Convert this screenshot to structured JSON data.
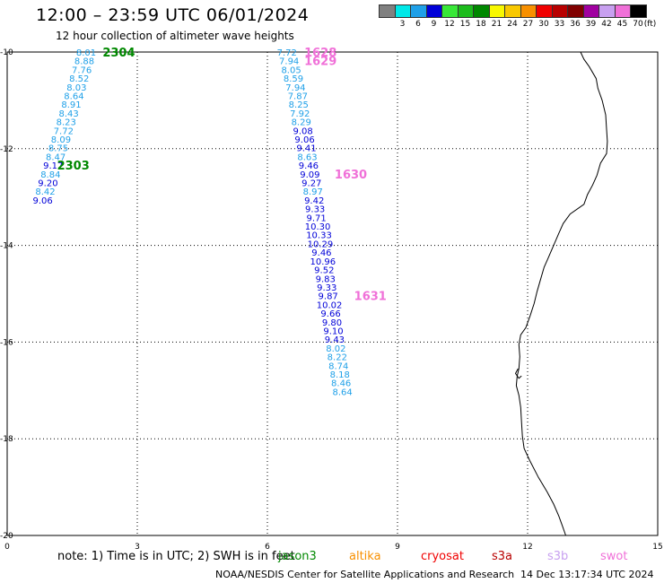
{
  "header": {
    "title": "12:00 – 23:59 UTC 06/01/2024",
    "subtitle": "12 hour collection of altimeter wave heights"
  },
  "legend": {
    "unit": "(ft)",
    "bins": [
      {
        "label": "3",
        "color": "#808080"
      },
      {
        "label": "6",
        "color": "#00e8e8"
      },
      {
        "label": "9",
        "color": "#1fa0e8"
      },
      {
        "label": "12",
        "color": "#0000d8"
      },
      {
        "label": "15",
        "color": "#38e838"
      },
      {
        "label": "18",
        "color": "#1cbc1c"
      },
      {
        "label": "21",
        "color": "#008800"
      },
      {
        "label": "24",
        "color": "#f8f800"
      },
      {
        "label": "27",
        "color": "#f8c800"
      },
      {
        "label": "30",
        "color": "#f89000"
      },
      {
        "label": "33",
        "color": "#f00000"
      },
      {
        "label": "36",
        "color": "#b80000"
      },
      {
        "label": "39",
        "color": "#800000"
      },
      {
        "label": "42",
        "color": "#a000a0"
      },
      {
        "label": "45",
        "color": "#c8a0f0"
      },
      {
        "label": "70",
        "color": "#f070d8"
      },
      {
        "label": "",
        "color": "#000000"
      }
    ]
  },
  "map": {
    "lon_range": [
      0,
      15
    ],
    "lat_range": [
      -20,
      -10
    ],
    "x_ticks": [
      {
        "lon": 0,
        "label": "0"
      },
      {
        "lon": 3,
        "label": "3"
      },
      {
        "lon": 6,
        "label": "6"
      },
      {
        "lon": 9,
        "label": "9"
      },
      {
        "lon": 12,
        "label": "12"
      },
      {
        "lon": 15,
        "label": "15"
      }
    ],
    "y_ticks": [
      {
        "lat": -10,
        "label": "-10"
      },
      {
        "lat": -12,
        "label": "-12"
      },
      {
        "lat": -14,
        "label": "-14"
      },
      {
        "lat": -16,
        "label": "-16"
      },
      {
        "lat": -18,
        "label": "-18"
      },
      {
        "lat": -20,
        "label": "-20"
      }
    ],
    "grid": "dotted",
    "coastline": [
      [
        13.22,
        -10.0
      ],
      [
        13.3,
        -10.15
      ],
      [
        13.42,
        -10.3
      ],
      [
        13.58,
        -10.55
      ],
      [
        13.62,
        -10.75
      ],
      [
        13.72,
        -11.0
      ],
      [
        13.8,
        -11.3
      ],
      [
        13.82,
        -11.6
      ],
      [
        13.84,
        -11.85
      ],
      [
        13.82,
        -12.1
      ],
      [
        13.68,
        -12.3
      ],
      [
        13.6,
        -12.55
      ],
      [
        13.5,
        -12.75
      ],
      [
        13.38,
        -12.95
      ],
      [
        13.3,
        -13.15
      ],
      [
        12.98,
        -13.35
      ],
      [
        12.82,
        -13.55
      ],
      [
        12.72,
        -13.75
      ],
      [
        12.6,
        -14.0
      ],
      [
        12.48,
        -14.25
      ],
      [
        12.38,
        -14.45
      ],
      [
        12.3,
        -14.7
      ],
      [
        12.22,
        -14.95
      ],
      [
        12.15,
        -15.2
      ],
      [
        12.06,
        -15.45
      ],
      [
        11.96,
        -15.7
      ],
      [
        11.84,
        -15.85
      ],
      [
        11.8,
        -16.05
      ],
      [
        11.82,
        -16.3
      ],
      [
        11.8,
        -16.55
      ],
      [
        11.76,
        -16.7
      ],
      [
        11.74,
        -16.9
      ],
      [
        11.8,
        -17.1
      ],
      [
        11.84,
        -17.35
      ],
      [
        11.86,
        -17.65
      ],
      [
        11.88,
        -17.95
      ],
      [
        11.92,
        -18.2
      ],
      [
        12.05,
        -18.45
      ],
      [
        12.25,
        -18.8
      ],
      [
        12.45,
        -19.1
      ],
      [
        12.6,
        -19.35
      ],
      [
        12.72,
        -19.6
      ],
      [
        12.8,
        -19.8
      ],
      [
        12.88,
        -20.0
      ]
    ],
    "coast_inlet": [
      [
        11.78,
        -16.55
      ],
      [
        11.72,
        -16.65
      ],
      [
        11.8,
        -16.75
      ],
      [
        11.86,
        -16.7
      ]
    ]
  },
  "tracks": [
    {
      "pass_label": "2304",
      "pass_color": "#008800",
      "pass_label_pos": {
        "lon": 2.2,
        "lat": -10.0
      },
      "label_align": "end",
      "points": [
        {
          "value": "8.01",
          "lon": 1.82,
          "lat": -10.0,
          "color": "#1fa0e8"
        },
        {
          "value": "8.88",
          "lon": 1.78,
          "lat": -10.18,
          "color": "#1fa0e8"
        },
        {
          "value": "7.76",
          "lon": 1.72,
          "lat": -10.36,
          "color": "#1fa0e8"
        },
        {
          "value": "8.52",
          "lon": 1.66,
          "lat": -10.54,
          "color": "#1fa0e8"
        },
        {
          "value": "8.03",
          "lon": 1.6,
          "lat": -10.72,
          "color": "#1fa0e8"
        },
        {
          "value": "8.64",
          "lon": 1.54,
          "lat": -10.9,
          "color": "#1fa0e8"
        },
        {
          "value": "8.91",
          "lon": 1.48,
          "lat": -11.08,
          "color": "#1fa0e8"
        },
        {
          "value": "8.43",
          "lon": 1.42,
          "lat": -11.26,
          "color": "#1fa0e8"
        },
        {
          "value": "8.23",
          "lon": 1.36,
          "lat": -11.44,
          "color": "#1fa0e8"
        },
        {
          "value": "7.72",
          "lon": 1.3,
          "lat": -11.62,
          "color": "#1fa0e8"
        },
        {
          "value": "8.09",
          "lon": 1.24,
          "lat": -11.8,
          "color": "#1fa0e8"
        },
        {
          "value": "8.75",
          "lon": 1.18,
          "lat": -11.98,
          "color": "#1fa0e8"
        },
        {
          "value": "8.47",
          "lon": 1.12,
          "lat": -12.16,
          "color": "#1fa0e8"
        },
        {
          "value": "9.17",
          "lon": 1.06,
          "lat": -12.34,
          "color": "#0000d8"
        },
        {
          "value": "8.84",
          "lon": 1.0,
          "lat": -12.52,
          "color": "#1fa0e8"
        },
        {
          "value": "9.20",
          "lon": 0.94,
          "lat": -12.7,
          "color": "#0000d8"
        },
        {
          "value": "8.42",
          "lon": 0.88,
          "lat": -12.88,
          "color": "#1fa0e8"
        },
        {
          "value": "9.06",
          "lon": 0.82,
          "lat": -13.06,
          "color": "#0000d8"
        }
      ]
    },
    {
      "pass_label": "2303",
      "pass_color": "#008800",
      "pass_label_pos": {
        "lon": 1.15,
        "lat": -12.34
      },
      "label_align": "start",
      "points": []
    },
    {
      "pass_label": "1628",
      "pass_color": "#f070d8",
      "pass_label_pos": {
        "lon": 6.85,
        "lat": -10.0
      },
      "label_align": "start",
      "points": [
        {
          "value": "7.72",
          "lon": 6.45,
          "lat": -10.0,
          "color": "#1fa0e8"
        },
        {
          "value": "7.94",
          "lon": 6.5,
          "lat": -10.18,
          "color": "#1fa0e8"
        }
      ]
    },
    {
      "pass_label": "1629",
      "pass_color": "#f070d8",
      "pass_label_pos": {
        "lon": 6.85,
        "lat": -10.18
      },
      "label_align": "start",
      "points": [
        {
          "value": "8.05",
          "lon": 6.55,
          "lat": -10.36,
          "color": "#1fa0e8"
        },
        {
          "value": "8.59",
          "lon": 6.6,
          "lat": -10.54,
          "color": "#1fa0e8"
        },
        {
          "value": "7.94",
          "lon": 6.65,
          "lat": -10.72,
          "color": "#1fa0e8"
        },
        {
          "value": "7.87",
          "lon": 6.7,
          "lat": -10.9,
          "color": "#1fa0e8"
        },
        {
          "value": "8.25",
          "lon": 6.72,
          "lat": -11.08,
          "color": "#1fa0e8"
        },
        {
          "value": "7.92",
          "lon": 6.75,
          "lat": -11.26,
          "color": "#1fa0e8"
        },
        {
          "value": "8.29",
          "lon": 6.78,
          "lat": -11.44,
          "color": "#1fa0e8"
        },
        {
          "value": "9.08",
          "lon": 6.82,
          "lat": -11.62,
          "color": "#0000d8"
        },
        {
          "value": "9.06",
          "lon": 6.86,
          "lat": -11.8,
          "color": "#0000d8"
        },
        {
          "value": "9.41",
          "lon": 6.9,
          "lat": -11.98,
          "color": "#0000d8"
        },
        {
          "value": "8.63",
          "lon": 6.92,
          "lat": -12.16,
          "color": "#1fa0e8"
        },
        {
          "value": "9.46",
          "lon": 6.95,
          "lat": -12.34,
          "color": "#0000d8"
        },
        {
          "value": "9.09",
          "lon": 6.98,
          "lat": -12.52,
          "color": "#0000d8"
        }
      ]
    },
    {
      "pass_label": "1630",
      "pass_color": "#f070d8",
      "pass_label_pos": {
        "lon": 7.55,
        "lat": -12.52
      },
      "label_align": "start",
      "points": [
        {
          "value": "9.27",
          "lon": 7.02,
          "lat": -12.7,
          "color": "#0000d8"
        },
        {
          "value": "8.97",
          "lon": 7.05,
          "lat": -12.88,
          "color": "#1fa0e8"
        },
        {
          "value": "9.42",
          "lon": 7.08,
          "lat": -13.06,
          "color": "#0000d8"
        },
        {
          "value": "9.33",
          "lon": 7.1,
          "lat": -13.24,
          "color": "#0000d8"
        },
        {
          "value": "9.71",
          "lon": 7.13,
          "lat": -13.42,
          "color": "#0000d8"
        },
        {
          "value": "10.30",
          "lon": 7.16,
          "lat": -13.6,
          "color": "#0000d8"
        },
        {
          "value": "10.33",
          "lon": 7.19,
          "lat": -13.78,
          "color": "#0000d8"
        },
        {
          "value": "10.29",
          "lon": 7.22,
          "lat": -13.96,
          "color": "#0000d8"
        },
        {
          "value": "9.46",
          "lon": 7.25,
          "lat": -14.14,
          "color": "#0000d8"
        },
        {
          "value": "10.96",
          "lon": 7.28,
          "lat": -14.32,
          "color": "#0000d8"
        },
        {
          "value": "9.52",
          "lon": 7.31,
          "lat": -14.5,
          "color": "#0000d8"
        },
        {
          "value": "9.83",
          "lon": 7.34,
          "lat": -14.68,
          "color": "#0000d8"
        },
        {
          "value": "9.33",
          "lon": 7.37,
          "lat": -14.86,
          "color": "#0000d8"
        },
        {
          "value": "9.87",
          "lon": 7.4,
          "lat": -15.04,
          "color": "#0000d8"
        }
      ]
    },
    {
      "pass_label": "1631",
      "pass_color": "#f070d8",
      "pass_label_pos": {
        "lon": 8.0,
        "lat": -15.04
      },
      "label_align": "start",
      "points": [
        {
          "value": "10.02",
          "lon": 7.43,
          "lat": -15.22,
          "color": "#0000d8"
        },
        {
          "value": "9.66",
          "lon": 7.46,
          "lat": -15.4,
          "color": "#0000d8"
        },
        {
          "value": "9.80",
          "lon": 7.49,
          "lat": -15.58,
          "color": "#0000d8"
        },
        {
          "value": "9.10",
          "lon": 7.52,
          "lat": -15.76,
          "color": "#0000d8"
        },
        {
          "value": "9.43",
          "lon": 7.55,
          "lat": -15.94,
          "color": "#0000d8"
        },
        {
          "value": "8.02",
          "lon": 7.58,
          "lat": -16.12,
          "color": "#1fa0e8"
        },
        {
          "value": "8.22",
          "lon": 7.61,
          "lat": -16.3,
          "color": "#1fa0e8"
        },
        {
          "value": "8.74",
          "lon": 7.64,
          "lat": -16.48,
          "color": "#1fa0e8"
        },
        {
          "value": "8.18",
          "lon": 7.67,
          "lat": -16.66,
          "color": "#1fa0e8"
        },
        {
          "value": "8.46",
          "lon": 7.7,
          "lat": -16.84,
          "color": "#1fa0e8"
        },
        {
          "value": "8.64",
          "lon": 7.73,
          "lat": -17.02,
          "color": "#1fa0e8"
        }
      ]
    }
  ],
  "note": {
    "text": "note: 1) Time is in UTC; 2) SWH is in feet",
    "satellites": [
      {
        "name": "jason3",
        "color": "#008800"
      },
      {
        "name": "altika",
        "color": "#f89000"
      },
      {
        "name": "cryosat",
        "color": "#f00000"
      },
      {
        "name": "s3a",
        "color": "#b80000"
      },
      {
        "name": "s3b",
        "color": "#c8a0f0"
      },
      {
        "name": "swot",
        "color": "#f070d8"
      }
    ]
  },
  "footer": {
    "credit": "NOAA/NESDIS Center for Satellite Applications and Research",
    "timestamp": "14 Dec 13:17:34 UTC 2024"
  }
}
